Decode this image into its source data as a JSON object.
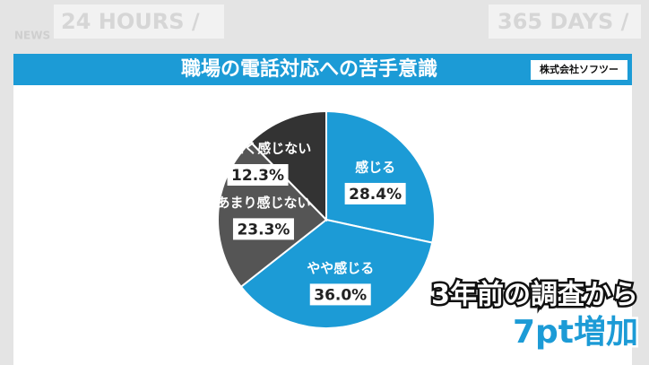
{
  "chart_data": {
    "type": "pie",
    "title": "職場の電話対応への苦手意識",
    "source": "株式会社ソフツー",
    "background_texts": [
      "24 HOURS /",
      "365 DAYS /",
      "NEWS"
    ],
    "annotations": [
      "3年前の調査から",
      "7pt増加"
    ],
    "categories": [
      "感じる",
      "やや感じる",
      "あまり感じない",
      "まったく感じない"
    ],
    "values": [
      28.4,
      36.0,
      23.3,
      12.3
    ],
    "value_labels": [
      "28.4%",
      "36.0%",
      "23.3%",
      "12.3%"
    ],
    "colors": [
      "#1c9bd6",
      "#1c9bd6",
      "#555555",
      "#333333"
    ]
  }
}
